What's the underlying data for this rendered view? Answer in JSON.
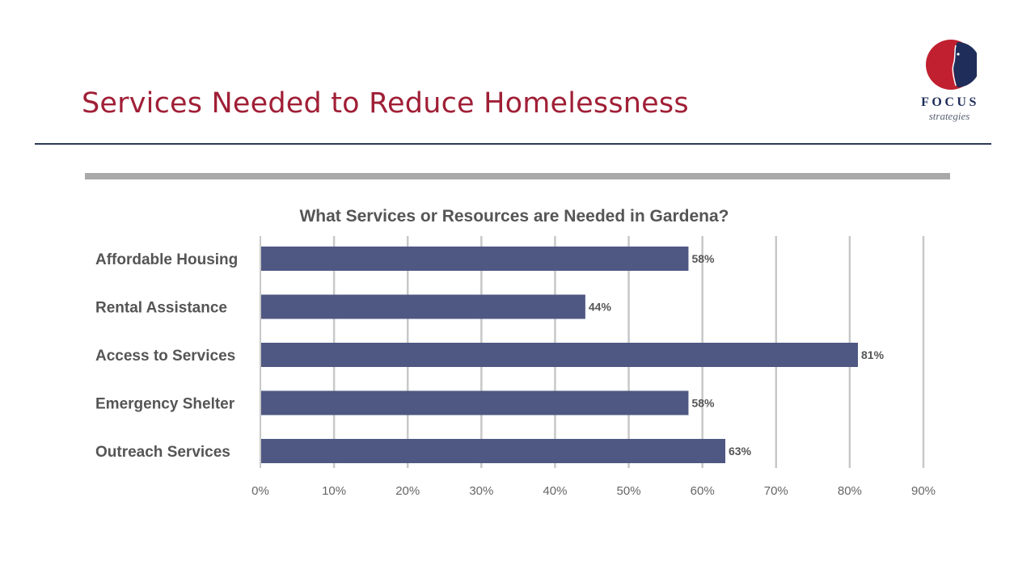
{
  "slide": {
    "title": "Services Needed to Reduce Homelessness"
  },
  "logo": {
    "word": "FOCUS",
    "sub": "strategies",
    "colors": {
      "circle": "#c0202f",
      "wordmark": "#1f2d5a"
    }
  },
  "chart_data": {
    "type": "bar",
    "orientation": "horizontal",
    "title": "What Services or Resources are Needed in Gardena?",
    "categories": [
      "Affordable Housing",
      "Rental Assistance",
      "Access to Services",
      "Emergency Shelter",
      "Outreach Services"
    ],
    "values": [
      58,
      44,
      81,
      58,
      63
    ],
    "data_labels": [
      "58%",
      "44%",
      "81%",
      "58%",
      "63%"
    ],
    "xlim": [
      0,
      90
    ],
    "x_ticks": [
      "0%",
      "10%",
      "20%",
      "30%",
      "40%",
      "50%",
      "60%",
      "70%",
      "80%",
      "90%"
    ],
    "xlabel": "",
    "ylabel": "",
    "grid": "vertical",
    "legend": "none",
    "bar_color": "#4f5883",
    "grid_color": "#c8c8c8"
  }
}
